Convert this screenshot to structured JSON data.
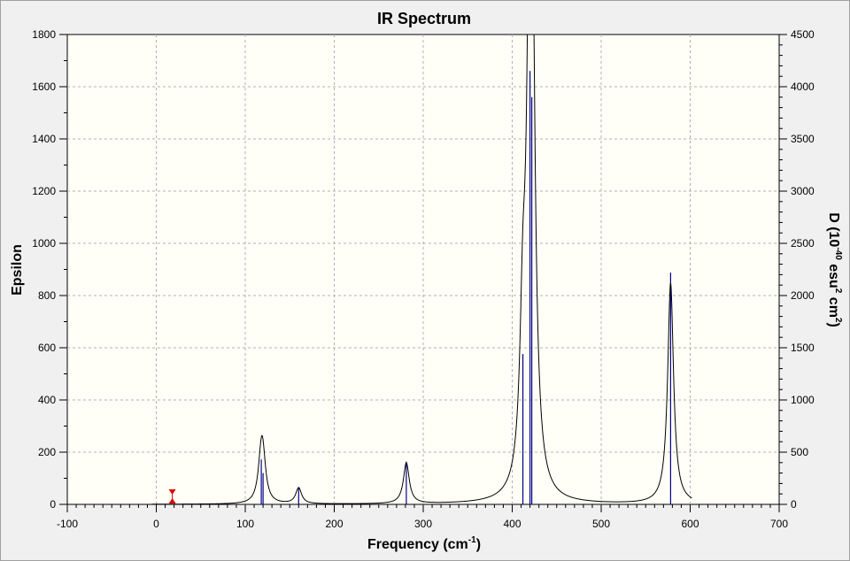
{
  "chart_data": {
    "type": "line",
    "title": "IR Spectrum",
    "xlabel": "Frequency (cm",
    "xlabel_sup": "-1",
    "xlabel_tail": ")",
    "ylabel": "Epsilon",
    "y2label_parts": [
      "D (10",
      "-40",
      " esu",
      "2",
      " cm",
      "2",
      ")"
    ],
    "xlim": [
      -100,
      700
    ],
    "ylim": [
      0,
      1800
    ],
    "y2lim": [
      0,
      4500
    ],
    "x_ticks": [
      -100,
      0,
      100,
      200,
      300,
      400,
      500,
      600,
      700
    ],
    "y_ticks": [
      0,
      200,
      400,
      600,
      800,
      1000,
      1200,
      1400,
      1600,
      1800
    ],
    "y2_ticks": [
      0,
      500,
      1000,
      1500,
      2000,
      2500,
      3000,
      3500,
      4000,
      4500
    ],
    "grid": true,
    "colors": {
      "plot_bg": "#fffff8",
      "spectrum": "#000000",
      "sticks": "#00008b",
      "marker": "#e00000"
    },
    "spectrum_range": [
      -5,
      602
    ],
    "spectrum_halfwidth": 4,
    "peaks": [
      {
        "freq": 118,
        "d": 430
      },
      {
        "freq": 120,
        "d": 300
      },
      {
        "freq": 160,
        "d": 160
      },
      {
        "freq": 281,
        "d": 410
      },
      {
        "freq": 412,
        "d": 1440
      },
      {
        "freq": 420,
        "d": 4150
      },
      {
        "freq": 422,
        "d": 3900
      },
      {
        "freq": 578,
        "d": 2220
      }
    ],
    "marker": {
      "x": 18
    }
  }
}
